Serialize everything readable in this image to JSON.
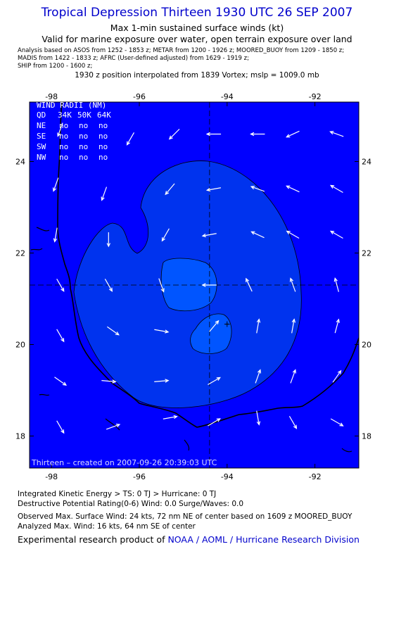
{
  "header": {
    "title": "Tropical Depression Thirteen 1930 UTC 26 SEP 2007",
    "subtitle1": "Max 1-min sustained surface winds (kt)",
    "subtitle2": "Valid for marine exposure over water, open terrain exposure over land",
    "analysis_lines": [
      "Analysis based on  ASOS from 1252 - 1853 z;  METAR from 1200 - 1926 z;  MOORED_BUOY from 1209 - 1850 z;",
      "MADIS from 1422 - 1833 z;  AFRC (User-defined adjusted) from 1629 - 1919 z;",
      "SHIP from 1200 - 1600 z;"
    ],
    "position_line": "1930 z position interpolated from 1839 Vortex; mslp = 1009.0 mb"
  },
  "map": {
    "lon_ticks": [
      "-98",
      "-96",
      "-94",
      "-92"
    ],
    "lat_ticks": [
      "24",
      "22",
      "20",
      "18"
    ],
    "lon_range": [
      -98.5,
      -91.0
    ],
    "lat_range": [
      17.3,
      25.3
    ],
    "center": {
      "lon": -94.4,
      "lat": 21.3
    },
    "watermark": "Thirteen  –  created on 2007-09-26 20:39:03 UTC",
    "colors": {
      "background": "#0000ff",
      "contour10": "#0033ee",
      "contour15": "#0055ff",
      "coast": "#000000"
    },
    "wind_radii": {
      "title": "WIND RADII (NM)",
      "header": [
        "QD",
        "34K",
        "50K",
        "64K"
      ],
      "rows": [
        [
          "NE",
          "no",
          "no",
          "no"
        ],
        [
          "SE",
          "no",
          "no",
          "no"
        ],
        [
          "SW",
          "no",
          "no",
          "no"
        ],
        [
          "NW",
          "no",
          "no",
          "no"
        ]
      ]
    },
    "wind_vectors": [
      {
        "lon": -97.8,
        "lat": 24.7,
        "dir": 200
      },
      {
        "lon": -96.2,
        "lat": 24.5,
        "dir": 210
      },
      {
        "lon": -95.2,
        "lat": 24.6,
        "dir": 225
      },
      {
        "lon": -94.3,
        "lat": 24.6,
        "dir": 270
      },
      {
        "lon": -93.3,
        "lat": 24.6,
        "dir": 270
      },
      {
        "lon": -92.5,
        "lat": 24.6,
        "dir": 245
      },
      {
        "lon": -91.5,
        "lat": 24.6,
        "dir": 290
      },
      {
        "lon": -97.9,
        "lat": 23.5,
        "dir": 200
      },
      {
        "lon": -96.8,
        "lat": 23.3,
        "dir": 200
      },
      {
        "lon": -95.3,
        "lat": 23.4,
        "dir": 220
      },
      {
        "lon": -94.3,
        "lat": 23.4,
        "dir": 260
      },
      {
        "lon": -93.3,
        "lat": 23.4,
        "dir": 290
      },
      {
        "lon": -92.5,
        "lat": 23.4,
        "dir": 295
      },
      {
        "lon": -91.5,
        "lat": 23.4,
        "dir": 300
      },
      {
        "lon": -97.9,
        "lat": 22.4,
        "dir": 190
      },
      {
        "lon": -96.7,
        "lat": 22.3,
        "dir": 180
      },
      {
        "lon": -95.4,
        "lat": 22.4,
        "dir": 210
      },
      {
        "lon": -94.4,
        "lat": 22.4,
        "dir": 260
      },
      {
        "lon": -93.3,
        "lat": 22.4,
        "dir": 295
      },
      {
        "lon": -92.5,
        "lat": 22.4,
        "dir": 300
      },
      {
        "lon": -91.5,
        "lat": 22.4,
        "dir": 300
      },
      {
        "lon": -97.8,
        "lat": 21.3,
        "dir": 150
      },
      {
        "lon": -96.7,
        "lat": 21.3,
        "dir": 150
      },
      {
        "lon": -95.5,
        "lat": 21.3,
        "dir": 160
      },
      {
        "lon": -94.4,
        "lat": 21.3,
        "dir": 270
      },
      {
        "lon": -93.5,
        "lat": 21.3,
        "dir": 335
      },
      {
        "lon": -92.5,
        "lat": 21.3,
        "dir": 340
      },
      {
        "lon": -91.5,
        "lat": 21.3,
        "dir": 345
      },
      {
        "lon": -97.8,
        "lat": 20.2,
        "dir": 150
      },
      {
        "lon": -96.6,
        "lat": 20.3,
        "dir": 125
      },
      {
        "lon": -95.5,
        "lat": 20.3,
        "dir": 100
      },
      {
        "lon": -94.3,
        "lat": 20.4,
        "dir": 40
      },
      {
        "lon": -93.3,
        "lat": 20.4,
        "dir": 10
      },
      {
        "lon": -92.5,
        "lat": 20.4,
        "dir": 10
      },
      {
        "lon": -91.5,
        "lat": 20.4,
        "dir": 15
      },
      {
        "lon": -97.8,
        "lat": 19.2,
        "dir": 125
      },
      {
        "lon": -96.7,
        "lat": 19.2,
        "dir": 95
      },
      {
        "lon": -95.5,
        "lat": 19.2,
        "dir": 85
      },
      {
        "lon": -94.3,
        "lat": 19.2,
        "dir": 60
      },
      {
        "lon": -93.3,
        "lat": 19.3,
        "dir": 20
      },
      {
        "lon": -92.5,
        "lat": 19.3,
        "dir": 20
      },
      {
        "lon": -91.5,
        "lat": 19.3,
        "dir": 35
      },
      {
        "lon": -97.8,
        "lat": 18.2,
        "dir": 150
      },
      {
        "lon": -96.6,
        "lat": 18.2,
        "dir": 70
      },
      {
        "lon": -95.3,
        "lat": 18.4,
        "dir": 80
      },
      {
        "lon": -94.3,
        "lat": 18.3,
        "dir": 60
      },
      {
        "lon": -93.3,
        "lat": 18.4,
        "dir": 170
      },
      {
        "lon": -92.5,
        "lat": 18.3,
        "dir": 150
      },
      {
        "lon": -91.5,
        "lat": 18.3,
        "dir": 120
      }
    ]
  },
  "footer": {
    "ike": "Integrated Kinetic Energy > TS: 0 TJ   > Hurricane: 0 TJ",
    "dpr": "Destructive Potential Rating(0-6)   Wind: 0.0 Surge/Waves: 0.0",
    "observed": "Observed Max. Surface Wind: 24 kts, 72 nm NE of center based on 1609 z MOORED_BUOY",
    "analyzed": "Analyzed Max. Wind: 16 kts, 64 nm SE of center",
    "credit_prefix": "Experimental research product of ",
    "credit_link": "NOAA / AOML / Hurricane Research Division"
  }
}
